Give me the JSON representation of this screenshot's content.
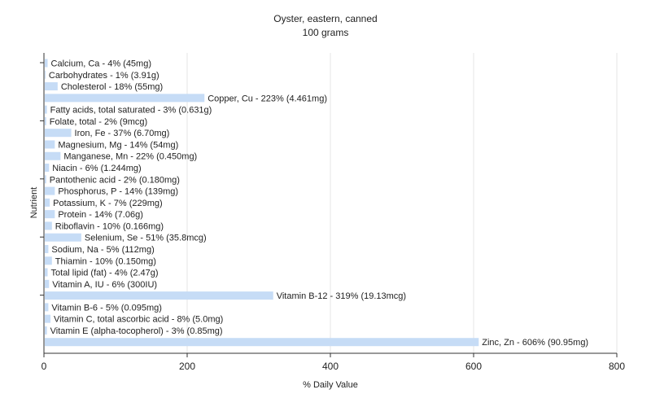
{
  "chart_data": {
    "type": "bar",
    "orientation": "horizontal",
    "title": "Oyster, eastern, canned",
    "subtitle": "100 grams",
    "xlabel": "% Daily Value",
    "ylabel": "Nutrient",
    "xlim": [
      0,
      800
    ],
    "xticks": [
      0,
      200,
      400,
      600,
      800
    ],
    "grid": true,
    "legend": "none",
    "bar_color": "#c6dcf6",
    "categories": [
      "Calcium, Ca - 4% (45mg)",
      "Carbohydrates - 1% (3.91g)",
      "Cholesterol - 18% (55mg)",
      "Copper, Cu - 223% (4.461mg)",
      "Fatty acids, total saturated - 3% (0.631g)",
      "Folate, total - 2% (9mcg)",
      "Iron, Fe - 37% (6.70mg)",
      "Magnesium, Mg - 14% (54mg)",
      "Manganese, Mn - 22% (0.450mg)",
      "Niacin - 6% (1.244mg)",
      "Pantothenic acid - 2% (0.180mg)",
      "Phosphorus, P - 14% (139mg)",
      "Potassium, K - 7% (229mg)",
      "Protein - 14% (7.06g)",
      "Riboflavin - 10% (0.166mg)",
      "Selenium, Se - 51% (35.8mcg)",
      "Sodium, Na - 5% (112mg)",
      "Thiamin - 10% (0.150mg)",
      "Total lipid (fat) - 4% (2.47g)",
      "Vitamin A, IU - 6% (300IU)",
      "Vitamin B-12 - 319% (19.13mcg)",
      "Vitamin B-6 - 5% (0.095mg)",
      "Vitamin C, total ascorbic acid - 8% (5.0mg)",
      "Vitamin E (alpha-tocopherol) - 3% (0.85mg)",
      "Zinc, Zn - 606% (90.95mg)"
    ],
    "values": [
      4,
      1,
      18,
      223,
      3,
      2,
      37,
      14,
      22,
      6,
      2,
      14,
      7,
      14,
      10,
      51,
      5,
      10,
      4,
      6,
      319,
      5,
      8,
      3,
      606
    ]
  }
}
